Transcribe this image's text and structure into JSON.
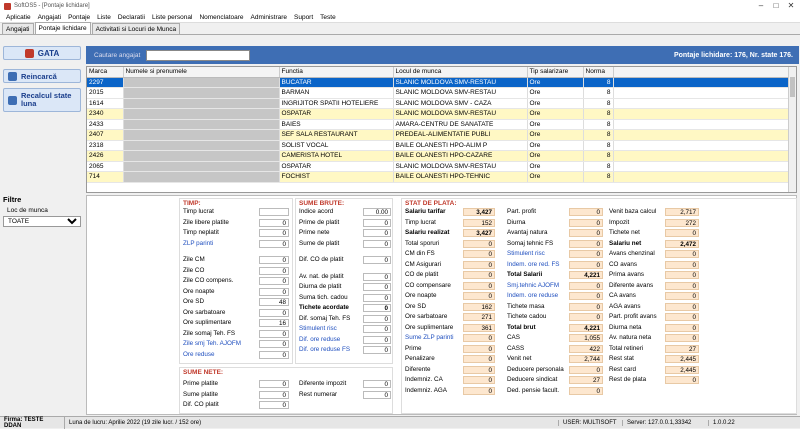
{
  "window": {
    "title": "SoftOS5 - [Pontaje lichidare]",
    "min": "–",
    "max": "□",
    "close": "✕"
  },
  "menu": [
    "Aplicatie",
    "Angajati",
    "Pontaje",
    "Liste",
    "Declaratii",
    "Liste personal",
    "Nomenclatoare",
    "Administrare",
    "Suport",
    "Teste"
  ],
  "tabs": [
    "Angajati",
    "Pontaje lichidare",
    "Activitati si Locuri de Munca"
  ],
  "sidebar": {
    "gata": "GATA",
    "reincarca": "Reincarcă",
    "recalcul": "Recalcul state luna",
    "filtre_title": "Filtre",
    "loc_label": "Loc de munca",
    "loc_value": "TOATE"
  },
  "search": {
    "label": "Cautare angajat",
    "value": ""
  },
  "header_info": "Pontaje lichidare: 176, Nr. state 176.",
  "grid": {
    "headers": [
      "Marca",
      "Numele si prenumele",
      "Functia",
      "Locul de munca",
      "Tip salarizare",
      "Norma"
    ],
    "rows": [
      {
        "marca": "2297",
        "functia": "BUCATAR",
        "loc": "SLANIC MOLDOVA SMV-RESTAU",
        "tip": "Ore",
        "norma": "8",
        "style": "sel"
      },
      {
        "marca": "2015",
        "functia": "BARMAN",
        "loc": "SLANIC MOLDOVA SMV-RESTAU",
        "tip": "Ore",
        "norma": "8",
        "style": "white"
      },
      {
        "marca": "1614",
        "functia": "INGRIJITOR SPATII HOTELIERE",
        "loc": "SLANIC MOLDOVA SMV - CAZA",
        "tip": "Ore",
        "norma": "8",
        "style": "white"
      },
      {
        "marca": "2340",
        "functia": "OSPATAR",
        "loc": "SLANIC MOLDOVA SMV-RESTAU",
        "tip": "Ore",
        "norma": "8",
        "style": "yellow"
      },
      {
        "marca": "2433",
        "functia": "BAIES",
        "loc": "AMARA-CENTRU DE SANATATE",
        "tip": "Ore",
        "norma": "8",
        "style": "white"
      },
      {
        "marca": "2407",
        "functia": "SEF SALA RESTAURANT",
        "loc": "PREDEAL-ALIMENTATIE PUBLI",
        "tip": "Ore",
        "norma": "8",
        "style": "yellow"
      },
      {
        "marca": "2318",
        "functia": "SOLIST VOCAL",
        "loc": "BAILE OLANESTI HPO-ALIM P",
        "tip": "Ore",
        "norma": "8",
        "style": "white"
      },
      {
        "marca": "2426",
        "functia": "CAMERISTA HOTEL",
        "loc": "BAILE OLANESTI HPO-CAZARE",
        "tip": "Ore",
        "norma": "8",
        "style": "yellow"
      },
      {
        "marca": "2065",
        "functia": "OSPATAR",
        "loc": "SLANIC MOLDOVA SMV-RESTAU",
        "tip": "Ore",
        "norma": "8",
        "style": "white"
      },
      {
        "marca": "714",
        "functia": "FOCHIST",
        "loc": "BAILE OLANESTI HPO-TEHNIC",
        "tip": "Ore",
        "norma": "8",
        "style": "yellow"
      }
    ]
  },
  "timp": {
    "title": "TIMP:",
    "rows": [
      {
        "label": "Timp lucrat",
        "value": "",
        "blue": false
      },
      {
        "label": "Zile libere platite",
        "value": "0",
        "blue": false
      },
      {
        "label": "Timp neplatit",
        "value": "0",
        "blue": false
      },
      {
        "label": "ZLP parinti",
        "value": "0",
        "blue": true
      },
      {
        "label": "Zile CM",
        "value": "0",
        "blue": false
      },
      {
        "label": "Zile CO",
        "value": "0",
        "blue": false
      },
      {
        "label": "Zile CO compens.",
        "value": "0",
        "blue": false
      },
      {
        "label": "Ore noapte",
        "value": "0",
        "blue": false
      },
      {
        "label": "Ore SD",
        "value": "48",
        "blue": false
      },
      {
        "label": "Ore sarbatoare",
        "value": "0",
        "blue": false
      },
      {
        "label": "Ore suplimentare",
        "value": "16",
        "blue": false
      },
      {
        "label": "Zile somaj Teh. FS",
        "value": "0",
        "blue": false
      },
      {
        "label": "Zile smj Teh. AJOFM",
        "value": "0",
        "blue": true
      },
      {
        "label": "Ore reduse",
        "value": "0",
        "blue": true
      }
    ]
  },
  "sume_brute": {
    "title": "SUME BRUTE:",
    "rows": [
      {
        "label": "Indice acord",
        "value": "0.00",
        "blue": false,
        "bold": false
      },
      {
        "label": "Prime de platit",
        "value": "0",
        "blue": false,
        "bold": false
      },
      {
        "label": "Prime nete",
        "value": "0",
        "blue": false,
        "bold": false
      },
      {
        "label": "Sume de platit",
        "value": "0",
        "blue": false,
        "bold": false
      },
      {
        "label": "Dif. CO de platit",
        "value": "0",
        "blue": false,
        "bold": false
      },
      {
        "label": "Av. nat. de platit",
        "value": "0",
        "blue": false,
        "bold": false
      },
      {
        "label": "Diurna de platit",
        "value": "0",
        "blue": false,
        "bold": false
      },
      {
        "label": "Suma tich. cadou",
        "value": "0",
        "blue": false,
        "bold": false
      },
      {
        "label": "Tichete acordate",
        "value": "0",
        "blue": false,
        "bold": true
      },
      {
        "label": "Dif. somaj Teh. FS",
        "value": "0",
        "blue": false,
        "bold": false
      },
      {
        "label": "Stimulent risc",
        "value": "0",
        "blue": true,
        "bold": false
      },
      {
        "label": "Dif. ore reduse",
        "value": "0",
        "blue": true,
        "bold": false
      },
      {
        "label": "Dif. ore reduse FS",
        "value": "0",
        "blue": true,
        "bold": false
      }
    ]
  },
  "sume_nete": {
    "title": "SUME NETE:",
    "rows": [
      {
        "label": "Prime platite",
        "value": "0"
      },
      {
        "label": "Sume platite",
        "value": "0"
      },
      {
        "label": "Dif. CO platit",
        "value": "0"
      }
    ],
    "rows2": [
      {
        "label": "Diferente impozit",
        "value": "0"
      },
      {
        "label": "Rest numerar",
        "value": "0"
      }
    ]
  },
  "stat": {
    "title": "STAT DE PLATA:",
    "col1": [
      {
        "label": "Salariu tarifar",
        "value": "3,427",
        "bold": true,
        "blue": false
      },
      {
        "label": "Timp lucrat",
        "value": "152",
        "bold": false,
        "blue": false
      },
      {
        "label": "Salariu realizat",
        "value": "3,427",
        "bold": true,
        "blue": false
      },
      {
        "label": "Total sporuri",
        "value": "0",
        "bold": false,
        "blue": false
      },
      {
        "label": "CM din FS",
        "value": "0",
        "bold": false,
        "blue": false
      },
      {
        "label": "CM Asigurari",
        "value": "0",
        "bold": false,
        "blue": false
      },
      {
        "label": "CO de platit",
        "value": "0",
        "bold": false,
        "blue": false
      },
      {
        "label": "CO compensare",
        "value": "0",
        "bold": false,
        "blue": false
      },
      {
        "label": "Ore noapte",
        "value": "0",
        "bold": false,
        "blue": false
      },
      {
        "label": "Ore SD",
        "value": "162",
        "bold": false,
        "blue": false
      },
      {
        "label": "Ore sarbatoare",
        "value": "271",
        "bold": false,
        "blue": false
      },
      {
        "label": "Ore suplimentare",
        "value": "361",
        "bold": false,
        "blue": false
      },
      {
        "label": "Sume ZLP parinti",
        "value": "0",
        "bold": false,
        "blue": true
      },
      {
        "label": "Prime",
        "value": "0",
        "bold": false,
        "blue": false
      },
      {
        "label": "Penalizare",
        "value": "0",
        "bold": false,
        "blue": false
      },
      {
        "label": "Diferente",
        "value": "0",
        "bold": false,
        "blue": false
      },
      {
        "label": "Indemniz. CA",
        "value": "0",
        "bold": false,
        "blue": false
      },
      {
        "label": "Indemniz. AGA",
        "value": "0",
        "bold": false,
        "blue": false
      }
    ],
    "col2": [
      {
        "label": "Part. profit",
        "value": "0",
        "bold": false,
        "blue": false
      },
      {
        "label": "Diurna",
        "value": "0",
        "bold": false,
        "blue": false
      },
      {
        "label": "Avantaj natura",
        "value": "0",
        "bold": false,
        "blue": false
      },
      {
        "label": "Somaj tehnic FS",
        "value": "0",
        "bold": false,
        "blue": false
      },
      {
        "label": "Stimulent risc",
        "value": "0",
        "bold": false,
        "blue": true
      },
      {
        "label": "Indem. ore red. FS",
        "value": "0",
        "bold": false,
        "blue": true
      },
      {
        "label": "Total Salarii",
        "value": "4,221",
        "bold": true,
        "blue": false
      },
      {
        "label": "Smj.tehnic AJOFM",
        "value": "0",
        "bold": false,
        "blue": true
      },
      {
        "label": "Indem. ore reduse",
        "value": "0",
        "bold": false,
        "blue": true
      },
      {
        "label": "Tichete masa",
        "value": "0",
        "bold": false,
        "blue": false
      },
      {
        "label": "Tichete cadou",
        "value": "0",
        "bold": false,
        "blue": false
      },
      {
        "label": "Total brut",
        "value": "4,221",
        "bold": true,
        "blue": false
      },
      {
        "label": "CAS",
        "value": "1,055",
        "bold": false,
        "blue": false
      },
      {
        "label": "CASS",
        "value": "422",
        "bold": false,
        "blue": false
      },
      {
        "label": "Venit net",
        "value": "2,744",
        "bold": false,
        "blue": false
      },
      {
        "label": "Deducere personala",
        "value": "0",
        "bold": false,
        "blue": false
      },
      {
        "label": "Deducere sindicat",
        "value": "27",
        "bold": false,
        "blue": false
      },
      {
        "label": "Ded. pensie facult.",
        "value": "0",
        "bold": false,
        "blue": false
      }
    ],
    "col3": [
      {
        "label": "Venit baza calcul",
        "value": "2,717",
        "bold": false,
        "blue": false
      },
      {
        "label": "Impozit",
        "value": "272",
        "bold": false,
        "blue": false
      },
      {
        "label": "Tichete net",
        "value": "0",
        "bold": false,
        "blue": false
      },
      {
        "label": "Salariu net",
        "value": "2,472",
        "bold": true,
        "blue": false
      },
      {
        "label": "Avans chenzinal",
        "value": "0",
        "bold": false,
        "blue": false
      },
      {
        "label": "CO avans",
        "value": "0",
        "bold": false,
        "blue": false
      },
      {
        "label": "Prima avans",
        "value": "0",
        "bold": false,
        "blue": false
      },
      {
        "label": "Diferente avans",
        "value": "0",
        "bold": false,
        "blue": false
      },
      {
        "label": "CA avans",
        "value": "0",
        "bold": false,
        "blue": false
      },
      {
        "label": "AGA avans",
        "value": "0",
        "bold": false,
        "blue": false
      },
      {
        "label": "Part. profit avans",
        "value": "0",
        "bold": false,
        "blue": false
      },
      {
        "label": "Diurna neta",
        "value": "0",
        "bold": false,
        "blue": false
      },
      {
        "label": "Av. natura neta",
        "value": "0",
        "bold": false,
        "blue": false
      },
      {
        "label": "Total retineri",
        "value": "27",
        "bold": false,
        "blue": false
      },
      {
        "label": "Rest stat",
        "value": "2,445",
        "bold": false,
        "blue": false
      },
      {
        "label": "Rest card",
        "value": "2,445",
        "bold": false,
        "blue": false
      },
      {
        "label": "Rest de plata",
        "value": "0",
        "bold": false,
        "blue": false
      }
    ]
  },
  "status": {
    "firma": "Firma: TESTE DDAN",
    "luna": "Luna de lucru: Aprilie 2022 (19 zile lucr. / 152 ore)",
    "user": "USER: MULTISOFT",
    "server": "Server: 127.0.0.1,33342",
    "version": "1.0.0.22"
  },
  "colors": {
    "accent": "#3e6eb4",
    "selection": "#0a64c8",
    "yellow_row": "#fff8c4",
    "section_title": "#c0392b",
    "peach": "#fde7cf"
  }
}
